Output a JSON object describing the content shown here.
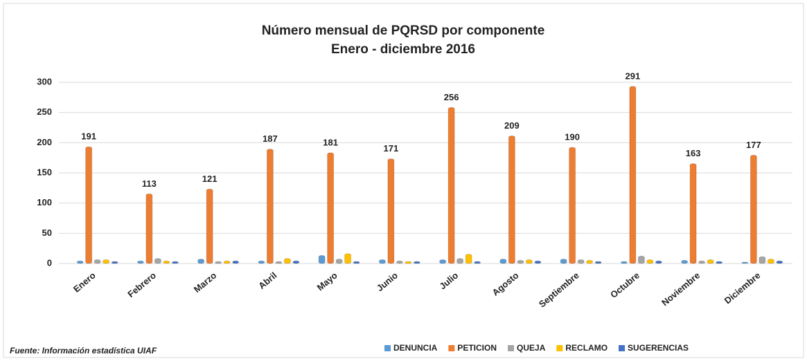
{
  "chart_data": {
    "type": "bar",
    "title": "Número mensual de PQRSD por componente",
    "subtitle": "Enero - diciembre 2016",
    "source": "Fuente: Información estadística UIAF",
    "categories": [
      "Enero",
      "Febrero",
      "Marzo",
      "Abril",
      "Mayo",
      "Junio",
      "Julio",
      "Agosto",
      "Septiembre",
      "Octubre",
      "Noviembre",
      "Diciembre"
    ],
    "series": [
      {
        "name": "DENUNCIA",
        "color": "#5b9bd5",
        "values": [
          2,
          2,
          5,
          2,
          11,
          4,
          4,
          5,
          5,
          1,
          3,
          0
        ]
      },
      {
        "name": "PETICION",
        "color": "#ed7d31",
        "values": [
          191,
          113,
          121,
          187,
          181,
          171,
          256,
          209,
          190,
          291,
          163,
          177
        ],
        "data_labels": true
      },
      {
        "name": "QUEJA",
        "color": "#a5a5a5",
        "values": [
          4,
          6,
          1,
          1,
          5,
          2,
          6,
          3,
          4,
          10,
          2,
          9
        ]
      },
      {
        "name": "RECLAMO",
        "color": "#ffc000",
        "values": [
          4,
          2,
          2,
          6,
          14,
          1,
          13,
          4,
          3,
          4,
          4,
          5
        ]
      },
      {
        "name": "SUGERENCIAS",
        "color": "#4472c4",
        "values": [
          1,
          1,
          2,
          2,
          1,
          1,
          1,
          2,
          1,
          2,
          1,
          2
        ]
      }
    ],
    "ylim": [
      0,
      300
    ],
    "yticks": [
      0,
      50,
      100,
      150,
      200,
      250,
      300
    ],
    "grid": true,
    "legend": "bottom-right"
  }
}
